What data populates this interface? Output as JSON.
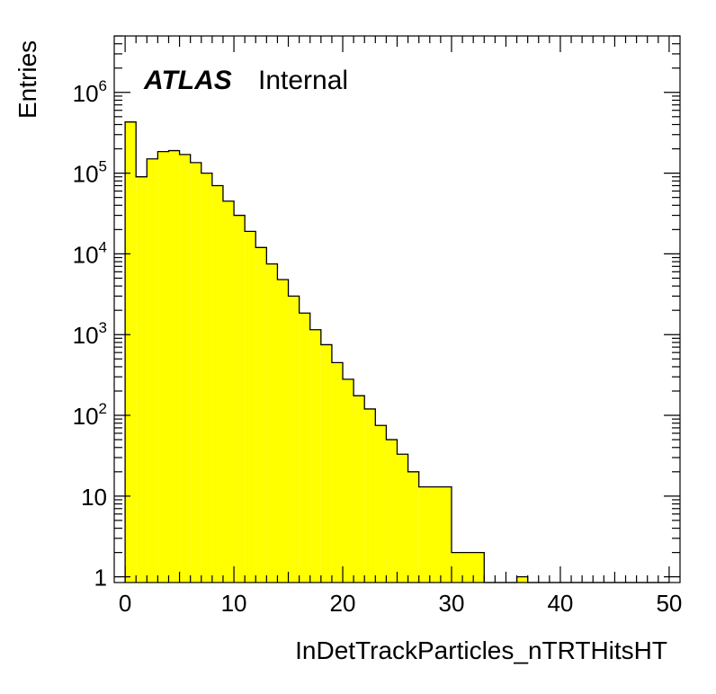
{
  "chart_data": {
    "type": "bar",
    "title": "",
    "xlabel": "InDetTrackParticles_nTRTHitsHT",
    "ylabel": "Entries",
    "xlim": [
      -1,
      51
    ],
    "ylim": [
      0.85,
      5000000
    ],
    "yscale": "log",
    "grid": false,
    "fill_color": "#ffff00",
    "line_color": "#000000",
    "bin_edges": [
      0,
      1,
      2,
      3,
      4,
      5,
      6,
      7,
      8,
      9,
      10,
      11,
      12,
      13,
      14,
      15,
      16,
      17,
      18,
      19,
      20,
      21,
      22,
      23,
      24,
      25,
      26,
      27,
      30,
      33,
      36,
      37,
      50
    ],
    "values": [
      430000,
      90000,
      150000,
      185000,
      190000,
      170000,
      135000,
      100000,
      70000,
      45000,
      30000,
      19000,
      12000,
      7500,
      4800,
      3000,
      1850,
      1150,
      750,
      450,
      280,
      175,
      120,
      75,
      50,
      33,
      20,
      13,
      2,
      0,
      1,
      0
    ],
    "xticks": [
      "0",
      "10",
      "20",
      "30",
      "40",
      "50"
    ],
    "yticks": [
      "1",
      "10",
      "10^2",
      "10^3",
      "10^4",
      "10^5",
      "10^6"
    ],
    "label": {
      "bold": "ATLAS",
      "text": "Internal"
    }
  }
}
